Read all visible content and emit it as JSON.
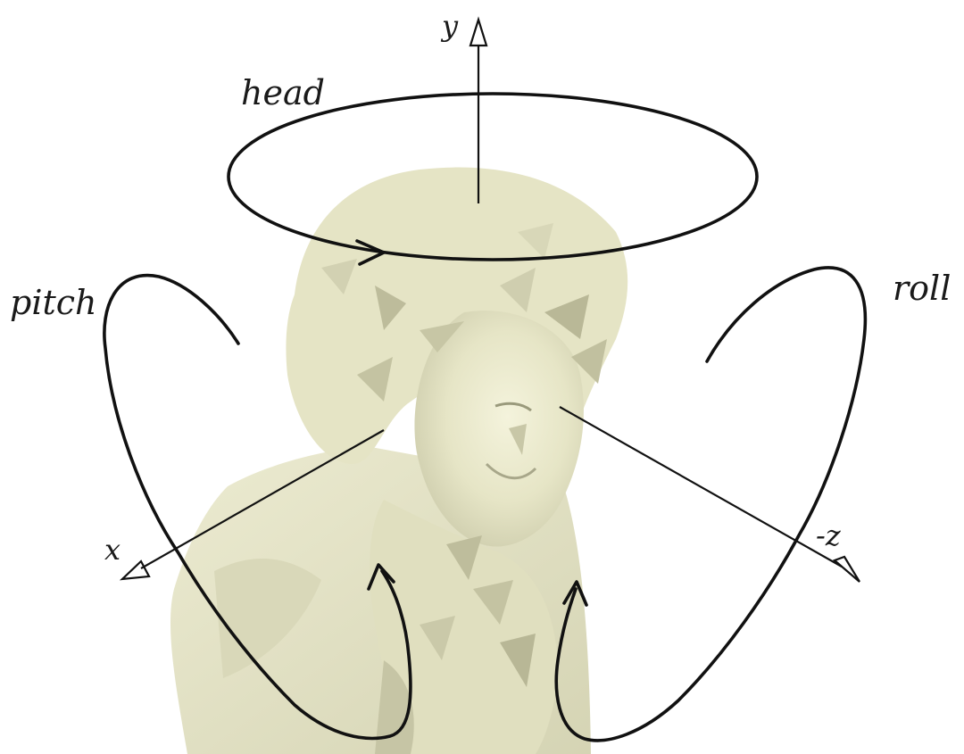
{
  "labels": {
    "head": "head",
    "pitch": "pitch",
    "roll": "roll",
    "y_axis": "y",
    "x_axis": "x",
    "neg_z_axis": "-z"
  },
  "colors": {
    "bust": "#e9e8cc",
    "bust_shadow": "#c9c8a6",
    "bust_dark": "#9a9a7c",
    "stroke": "#111111"
  },
  "icons": [
    "arrow-head-icon",
    "bust-icon"
  ]
}
